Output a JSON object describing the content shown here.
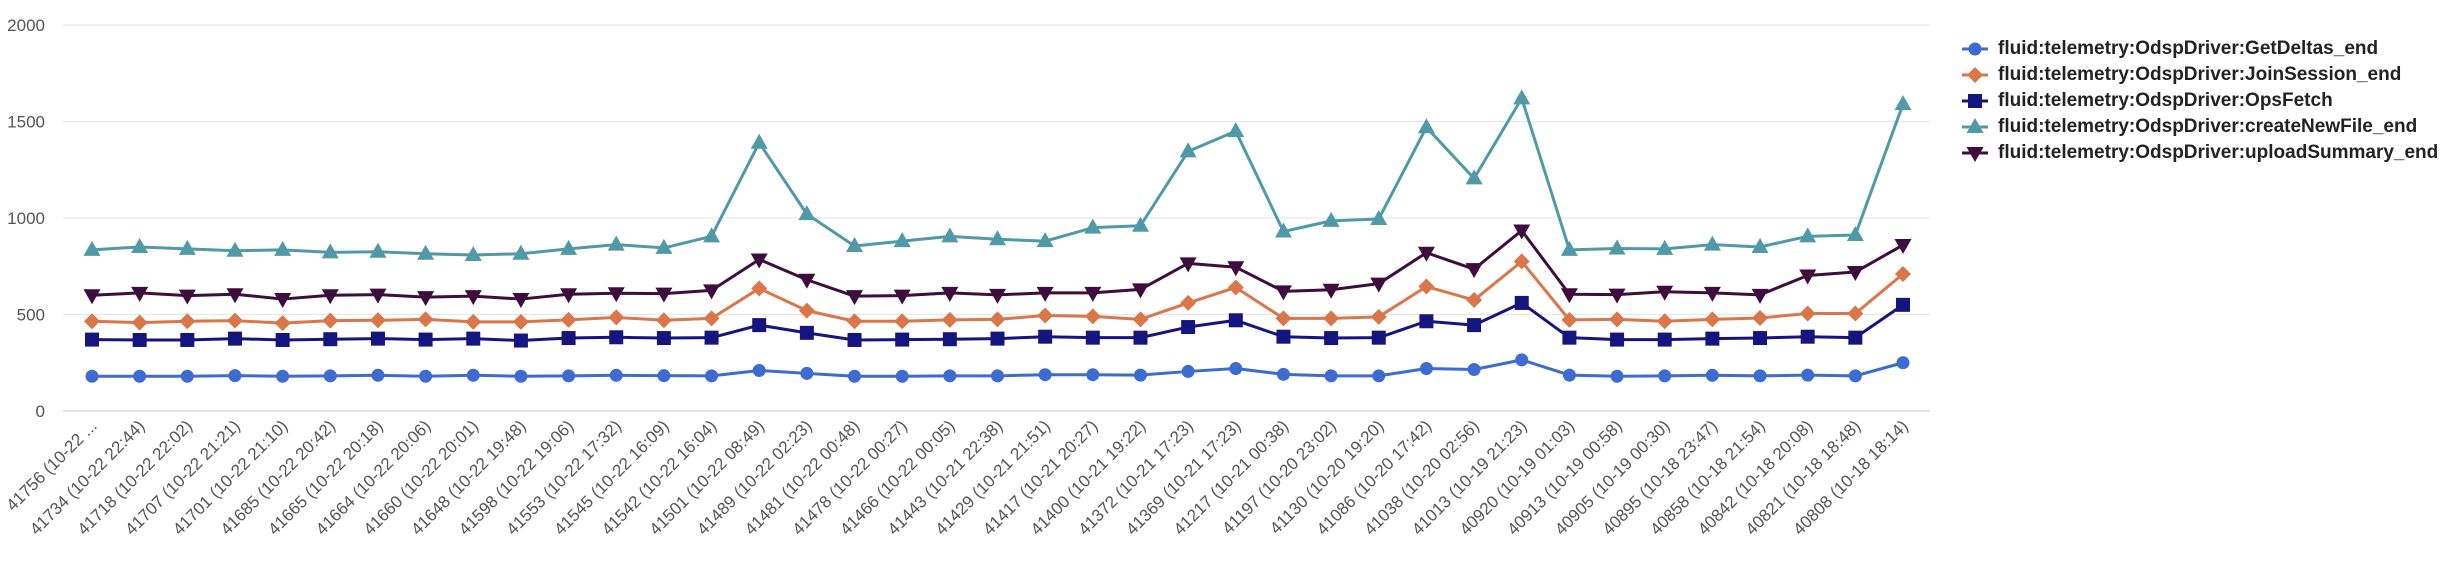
{
  "chart_data": {
    "type": "line",
    "title": "",
    "xlabel": "",
    "ylabel": "",
    "ylim": [
      0,
      2000
    ],
    "yticks": [
      0,
      500,
      1000,
      1500,
      2000
    ],
    "grid": true,
    "legend_position": "right",
    "categories": [
      "41756 (10-22 ...",
      "41734 (10-22 22:44)",
      "41718 (10-22 22:02)",
      "41707 (10-22 21:21)",
      "41701 (10-22 21:10)",
      "41685 (10-22 20:42)",
      "41665 (10-22 20:18)",
      "41664 (10-22 20:06)",
      "41660 (10-22 20:01)",
      "41648 (10-22 19:48)",
      "41598 (10-22 19:06)",
      "41553 (10-22 17:32)",
      "41545 (10-22 16:09)",
      "41542 (10-22 16:04)",
      "41501 (10-22 08:49)",
      "41489 (10-22 02:23)",
      "41481 (10-22 00:48)",
      "41478 (10-22 00:27)",
      "41466 (10-22 00:05)",
      "41443 (10-21 22:38)",
      "41429 (10-21 21:51)",
      "41417 (10-21 20:27)",
      "41400 (10-21 19:22)",
      "41372 (10-21 17:23)",
      "41369 (10-21 17:23)",
      "41217 (10-21 00:38)",
      "41197 (10-20 23:02)",
      "41130 (10-20 19:20)",
      "41086 (10-20 17:42)",
      "41038 (10-20 02:56)",
      "41013 (10-19 21:23)",
      "40920 (10-19 01:03)",
      "40913 (10-19 00:58)",
      "40905 (10-19 00:30)",
      "40895 (10-18 23:47)",
      "40858 (10-18 21:54)",
      "40842 (10-18 20:08)",
      "40821 (10-18 18:48)",
      "40808 (10-18 18:14)"
    ],
    "series": [
      {
        "name": "fluid:telemetry:OdspDriver:GetDeltas_end",
        "color": "#3e6bcf",
        "marker": "circle",
        "values": [
          180,
          180,
          180,
          183,
          180,
          182,
          185,
          180,
          185,
          180,
          182,
          185,
          183,
          182,
          210,
          195,
          180,
          180,
          182,
          182,
          188,
          188,
          186,
          205,
          220,
          190,
          182,
          182,
          220,
          215,
          265,
          186,
          180,
          182,
          185,
          182,
          186,
          182,
          250
        ]
      },
      {
        "name": "fluid:telemetry:OdspDriver:JoinSession_end",
        "color": "#d9764a",
        "marker": "diamond",
        "values": [
          465,
          458,
          465,
          468,
          455,
          468,
          470,
          475,
          462,
          462,
          472,
          485,
          470,
          480,
          635,
          520,
          465,
          465,
          472,
          475,
          495,
          490,
          475,
          560,
          640,
          480,
          480,
          488,
          645,
          575,
          775,
          472,
          475,
          465,
          475,
          482,
          505,
          505,
          710
        ]
      },
      {
        "name": "fluid:telemetry:OdspDriver:OpsFetch",
        "color": "#151580",
        "marker": "square",
        "values": [
          370,
          368,
          368,
          375,
          368,
          372,
          375,
          370,
          375,
          365,
          378,
          382,
          378,
          380,
          445,
          405,
          368,
          370,
          372,
          375,
          385,
          380,
          380,
          435,
          470,
          385,
          378,
          380,
          465,
          445,
          560,
          380,
          370,
          370,
          375,
          378,
          385,
          380,
          550
        ]
      },
      {
        "name": "fluid:telemetry:OdspDriver:createNewFile_end",
        "color": "#4f9aa6",
        "marker": "triangle-up",
        "values": [
          835,
          850,
          840,
          830,
          835,
          822,
          825,
          815,
          808,
          815,
          840,
          862,
          845,
          905,
          1390,
          1020,
          855,
          880,
          905,
          890,
          880,
          950,
          960,
          1345,
          1450,
          930,
          985,
          995,
          1470,
          1205,
          1620,
          835,
          842,
          840,
          862,
          850,
          905,
          912,
          1590
        ]
      },
      {
        "name": "fluid:telemetry:OdspDriver:uploadSummary_end",
        "color": "#3d0d3d",
        "marker": "triangle-down",
        "values": [
          600,
          612,
          598,
          605,
          580,
          600,
          603,
          590,
          595,
          580,
          605,
          610,
          608,
          625,
          785,
          680,
          595,
          598,
          612,
          602,
          612,
          612,
          630,
          765,
          745,
          620,
          628,
          660,
          820,
          735,
          935,
          605,
          603,
          618,
          612,
          602,
          702,
          720,
          860
        ]
      }
    ]
  }
}
